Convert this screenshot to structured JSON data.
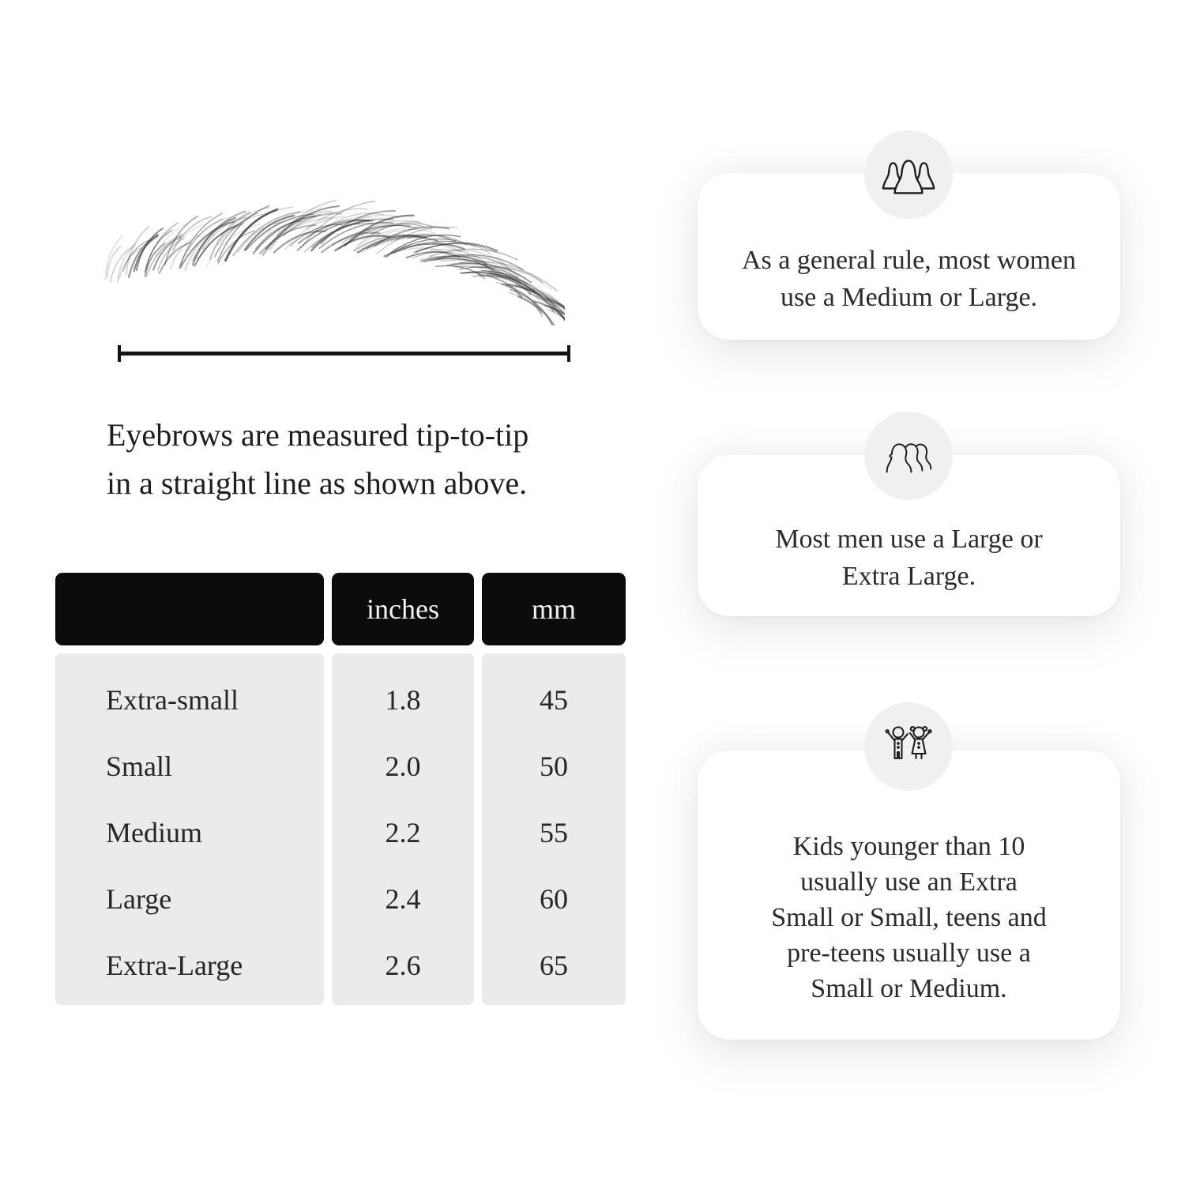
{
  "figure": {
    "subject": "eyebrow-illustration",
    "line_color": "#131313"
  },
  "measure": {
    "caption_lines": [
      "Eyebrows are measured tip-to-tip",
      "in a straight line as shown above."
    ]
  },
  "size_table": {
    "columns": [
      "",
      "inches",
      "mm"
    ],
    "rows": [
      {
        "label": "Extra-small",
        "inches": "1.8",
        "mm": "45"
      },
      {
        "label": "Small",
        "inches": "2.0",
        "mm": "50"
      },
      {
        "label": "Medium",
        "inches": "2.2",
        "mm": "55"
      },
      {
        "label": "Large",
        "inches": "2.4",
        "mm": "60"
      },
      {
        "label": "Extra-Large",
        "inches": "2.6",
        "mm": "65"
      }
    ],
    "header_bg": "#0c0c0c",
    "header_text_color": "#f3f3f3",
    "body_bg": "#ebebeb"
  },
  "cards": [
    {
      "icon": "women-group-icon",
      "lines": [
        "As a general rule, most women",
        "use a Medium or Large."
      ]
    },
    {
      "icon": "men-group-icon",
      "lines": [
        "Most men use a Large or",
        "Extra Large."
      ]
    },
    {
      "icon": "kids-icon",
      "lines": [
        "Kids younger than 10",
        "usually use an Extra",
        "Small or Small, teens and",
        "pre-teens usually use a",
        "Small or Medium."
      ]
    }
  ],
  "colors": {
    "page_bg": "#ffffff",
    "card_bg": "#ffffff",
    "icon_circle_bg": "#f0f0f0",
    "text": "#2b2b2b"
  }
}
